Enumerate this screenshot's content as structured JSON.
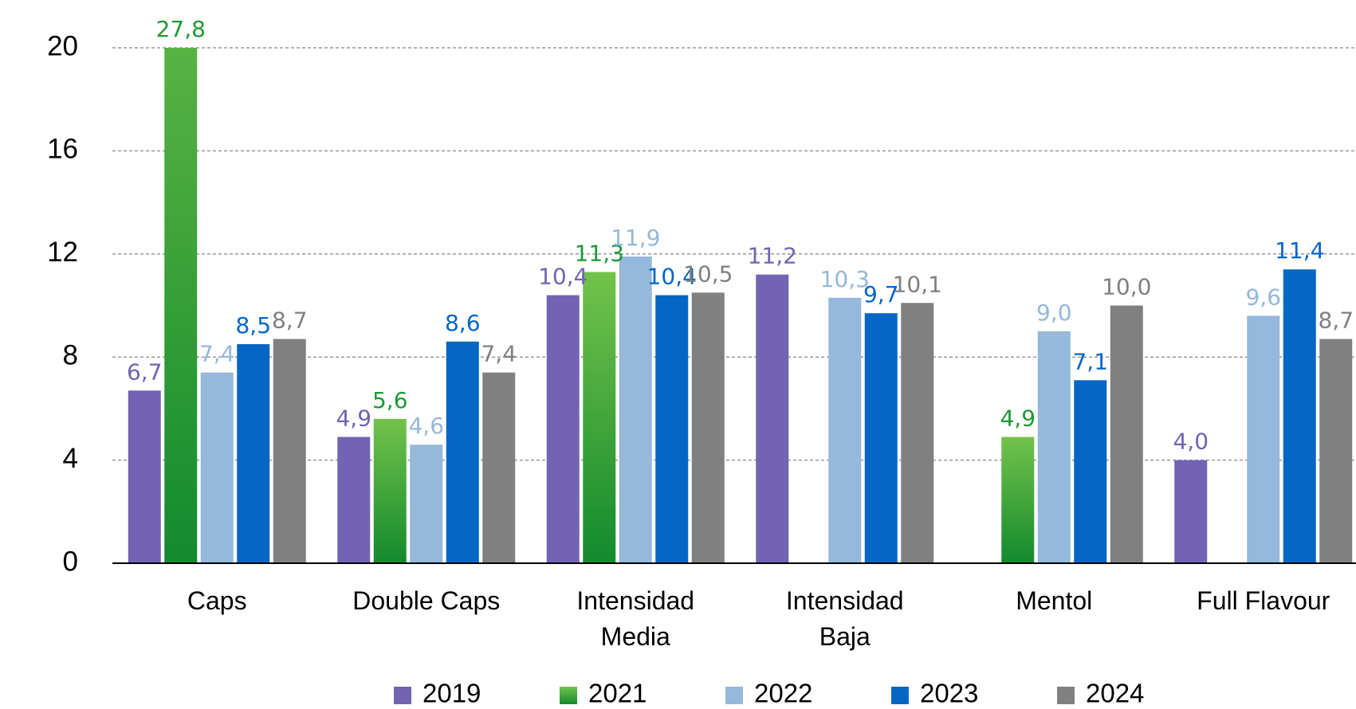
{
  "chart_data": {
    "type": "bar",
    "categories": [
      "Caps",
      "Double Caps",
      "Intensidad\nMedia",
      "Intensidad\nBaja",
      "Mentol",
      "Full Flavour"
    ],
    "series": [
      {
        "name": "2019",
        "color": "#7263b3",
        "values": [
          6.7,
          4.9,
          10.4,
          11.2,
          null,
          4.0
        ],
        "value_labels": [
          "6,7",
          "4,9",
          "10,4",
          "11,2",
          null,
          "4,0"
        ]
      },
      {
        "name": "2021",
        "color": "#1d9a34",
        "values": [
          27.8,
          5.6,
          11.3,
          null,
          4.9,
          null
        ],
        "value_labels": [
          "27,8",
          "5,6",
          "11,3",
          null,
          "4,9",
          null
        ]
      },
      {
        "name": "2022",
        "color": "#95b8db",
        "values": [
          7.4,
          4.6,
          11.9,
          10.3,
          9.0,
          9.6
        ],
        "value_labels": [
          "7,4",
          "4,6",
          "11,9",
          "10,3",
          "9,0",
          "9,6"
        ]
      },
      {
        "name": "2023",
        "color": "#0666c4",
        "values": [
          8.5,
          8.6,
          10.4,
          9.7,
          7.1,
          11.4
        ],
        "value_labels": [
          "8,5",
          "8,6",
          "10,4",
          "9,7",
          "7,1",
          "11,4"
        ]
      },
      {
        "name": "2024",
        "color": "#808080",
        "values": [
          8.7,
          7.4,
          10.5,
          10.1,
          10.0,
          8.7
        ],
        "value_labels": [
          "8,7",
          "7,4",
          "10,5",
          "10,1",
          "10,0",
          "8,7"
        ]
      }
    ],
    "ylim": [
      0,
      20
    ],
    "yticks": [
      0,
      4,
      8,
      12,
      16,
      20
    ],
    "grid": true,
    "legend": "bottom"
  }
}
